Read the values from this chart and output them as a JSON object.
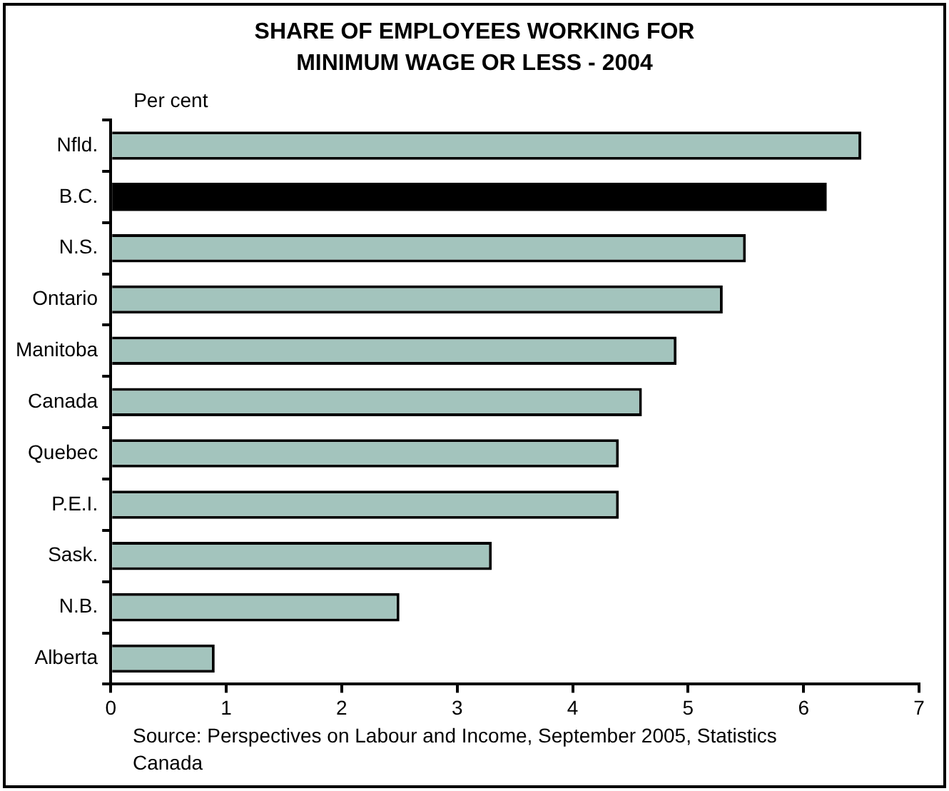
{
  "chart_data": {
    "type": "bar",
    "orientation": "horizontal",
    "title": "SHARE OF EMPLOYEES WORKING FOR\nMINIMUM WAGE OR LESS - 2004",
    "xlabel": "Per cent",
    "categories": [
      "Nfld.",
      "B.C.",
      "N.S.",
      "Ontario",
      "Manitoba",
      "Canada",
      "Quebec",
      "P.E.I.",
      "Sask.",
      "N.B.",
      "Alberta"
    ],
    "values": [
      6.5,
      6.2,
      5.5,
      5.3,
      4.9,
      4.6,
      4.4,
      4.4,
      3.3,
      2.5,
      0.9
    ],
    "colors": [
      "#a3c4bd",
      "#000000",
      "#a3c4bd",
      "#a3c4bd",
      "#a3c4bd",
      "#a3c4bd",
      "#a3c4bd",
      "#a3c4bd",
      "#a3c4bd",
      "#a3c4bd",
      "#a3c4bd"
    ],
    "xlim": [
      0,
      7
    ],
    "xticks": [
      0,
      1,
      2,
      3,
      4,
      5,
      6,
      7
    ],
    "grid": false,
    "legend": false,
    "annotations": [
      "Source: Perspectives on Labour and Income, September 2005, Statistics Canada"
    ]
  }
}
